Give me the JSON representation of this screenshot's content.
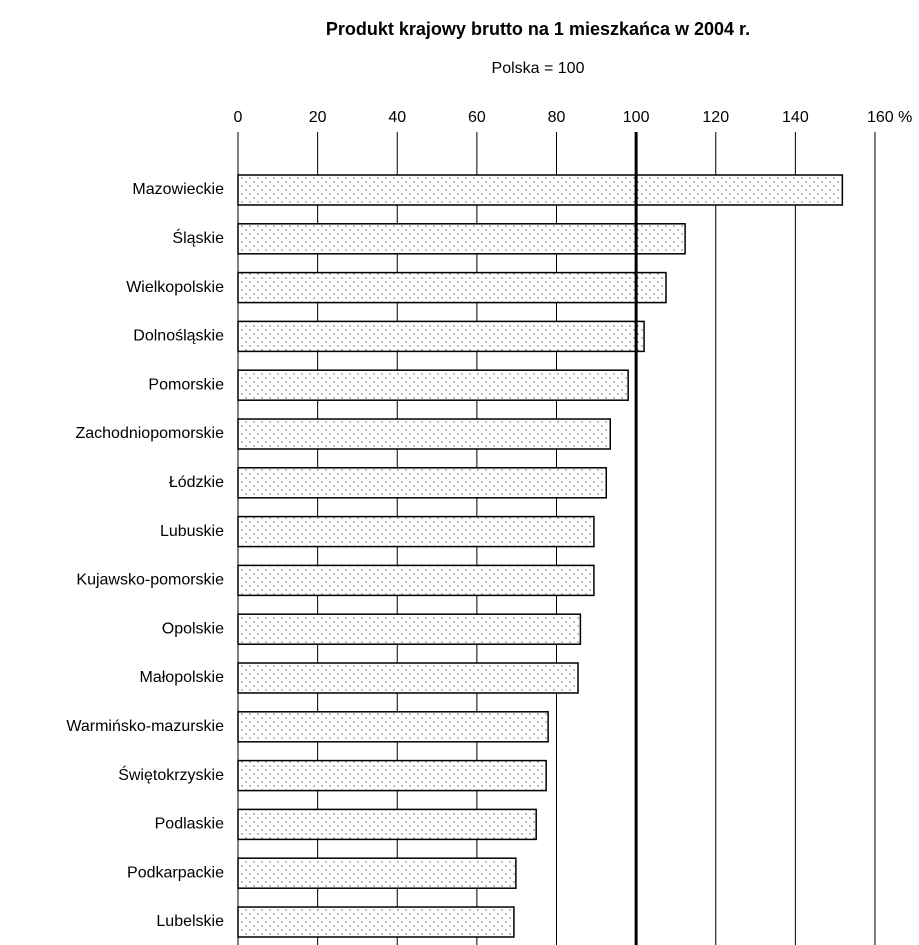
{
  "chart_data": {
    "type": "barh",
    "title": "Produkt krajowy brutto na 1 mieszkańca w 2004 r.",
    "subtitle": "Polska = 100",
    "categories": [
      "Mazowieckie",
      "Śląskie",
      "Wielkopolskie",
      "Dolnośląskie",
      "Pomorskie",
      "Zachodniopomorskie",
      "Łódzkie",
      "Lubuskie",
      "Kujawsko-pomorskie",
      "Opolskie",
      "Małopolskie",
      "Warmińsko-mazurskie",
      "Świętokrzyskie",
      "Podlaskie",
      "Podkarpackie",
      "Lubelskie"
    ],
    "values": [
      151.8,
      112.3,
      107.5,
      102,
      98,
      93.5,
      92.5,
      89.4,
      89.4,
      86,
      85.4,
      77.9,
      77.4,
      74.9,
      69.8,
      69.3
    ],
    "xlim": [
      0,
      160
    ],
    "xticks": [
      0,
      20,
      40,
      60,
      80,
      100,
      120,
      140,
      {
        "value": 160,
        "label": "160 %"
      }
    ],
    "reference_line": 100,
    "grid": true
  }
}
